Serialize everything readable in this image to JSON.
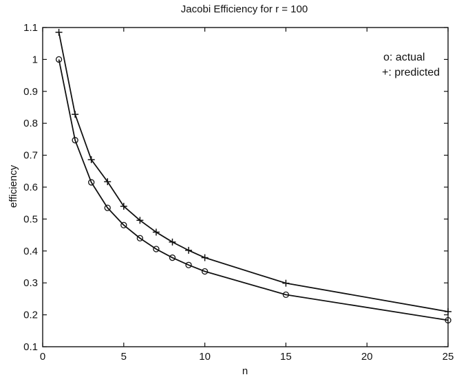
{
  "chart_data": {
    "type": "line",
    "title": "Jacobi Efficiency for r = 100",
    "xlabel": "n",
    "ylabel": "efficiency",
    "xlim": [
      0,
      25
    ],
    "ylim": [
      0.1,
      1.1
    ],
    "xticks": [
      0,
      5,
      10,
      15,
      20,
      25
    ],
    "yticks": [
      0.1,
      0.2,
      0.3,
      0.4,
      0.5,
      0.6,
      0.7,
      0.8,
      0.9,
      1,
      1.1
    ],
    "grid": false,
    "legend_position": "top-right",
    "legend": [
      "o: actual",
      "+: predicted"
    ],
    "series": [
      {
        "marker": "circle",
        "x": [
          1,
          2,
          3,
          4,
          5,
          6,
          7,
          8,
          9,
          10,
          15,
          25
        ],
        "y": [
          1.0,
          0.747,
          0.615,
          0.535,
          0.481,
          0.44,
          0.406,
          0.379,
          0.356,
          0.336,
          0.263,
          0.183
        ]
      },
      {
        "marker": "plus",
        "x": [
          1,
          2,
          3,
          4,
          5,
          6,
          7,
          8,
          9,
          10,
          15,
          25
        ],
        "y": [
          1.085,
          0.828,
          0.686,
          0.617,
          0.54,
          0.496,
          0.459,
          0.428,
          0.402,
          0.379,
          0.299,
          0.21
        ]
      }
    ]
  }
}
